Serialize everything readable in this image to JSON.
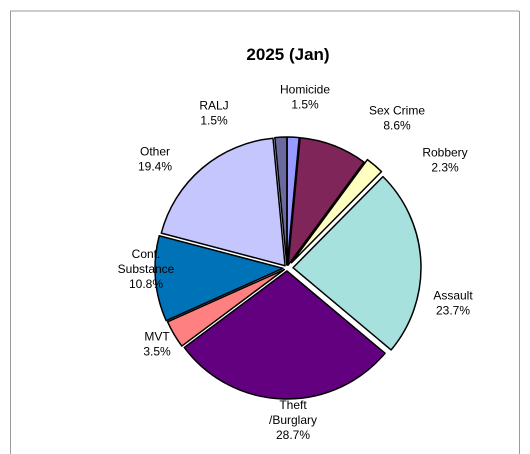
{
  "chart_data": {
    "type": "pie",
    "title": "2025 (Jan)",
    "slices": [
      {
        "label": [
          "Homicide"
        ],
        "pct": "1.5%",
        "value": 1.5,
        "color": "#9999ff"
      },
      {
        "label": [
          "Sex Crime"
        ],
        "pct": "8.6%",
        "value": 8.6,
        "color": "#7f2559"
      },
      {
        "label": [
          "Robbery"
        ],
        "pct": "2.3%",
        "value": 2.3,
        "color": "#ffffc0"
      },
      {
        "label": [
          "Assault"
        ],
        "pct": "23.7%",
        "value": 23.7,
        "color": "#a6e1de"
      },
      {
        "label": [
          "Theft",
          "/Burglary"
        ],
        "pct": "28.7%",
        "value": 28.7,
        "color": "#62007f"
      },
      {
        "label": [
          "MVT"
        ],
        "pct": "3.5%",
        "value": 3.5,
        "color": "#ff8080"
      },
      {
        "label": [
          "Cont.",
          "Substance"
        ],
        "pct": "10.8%",
        "value": 10.8,
        "color": "#0073b8"
      },
      {
        "label": [
          "Other"
        ],
        "pct": "19.4%",
        "value": 19.4,
        "color": "#c6c6ff"
      },
      {
        "label": [
          "RALJ"
        ],
        "pct": "1.5%",
        "value": 1.5,
        "color": "#6a6aa0"
      }
    ]
  }
}
